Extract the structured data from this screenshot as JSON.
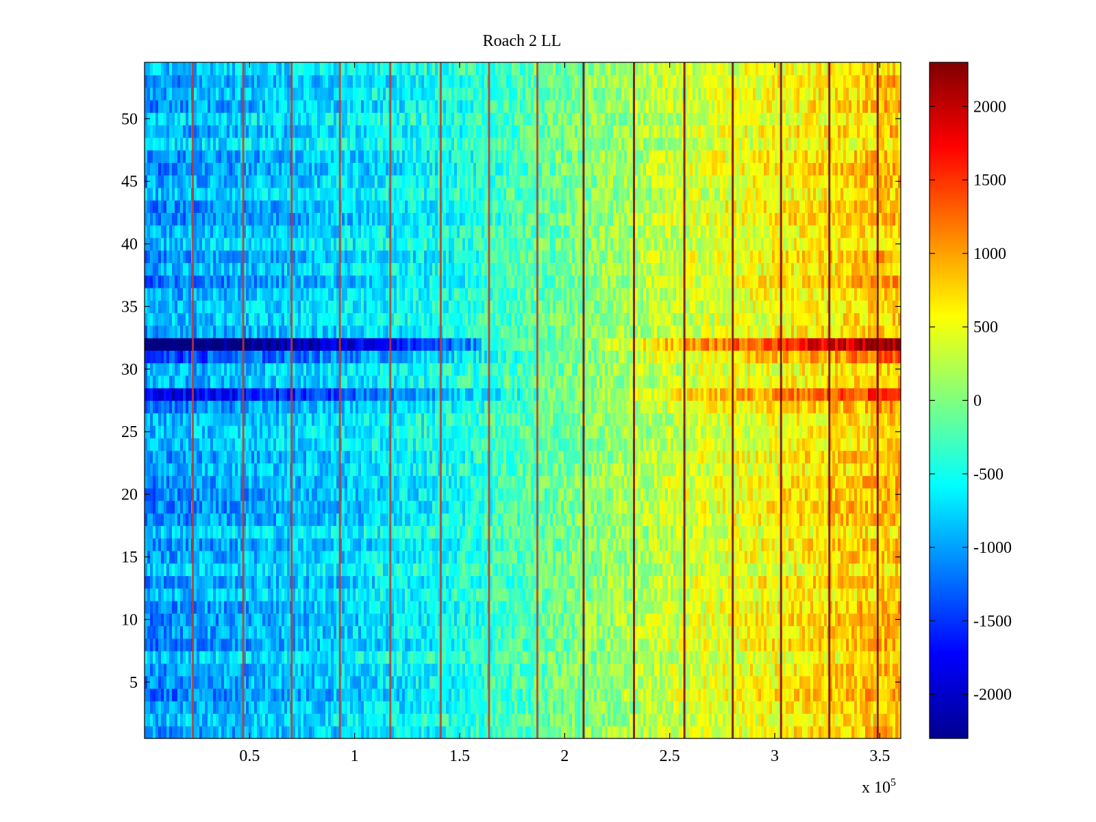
{
  "chart_data": {
    "type": "heatmap",
    "title": "Roach 2 LL",
    "xlabel": "",
    "ylabel": "",
    "x_multiplier_label": "x 10",
    "x_multiplier_exponent": "5",
    "xlim": [
      0,
      360000
    ],
    "ylim": [
      0.5,
      54.5
    ],
    "x_ticks": [
      50000,
      100000,
      150000,
      200000,
      250000,
      300000,
      350000
    ],
    "x_tick_labels": [
      "0.5",
      "1",
      "1.5",
      "2",
      "2.5",
      "3",
      "3.5"
    ],
    "y_ticks": [
      5,
      10,
      15,
      20,
      25,
      30,
      35,
      40,
      45,
      50
    ],
    "y_tick_labels": [
      "5",
      "10",
      "15",
      "20",
      "25",
      "30",
      "35",
      "40",
      "45",
      "50"
    ],
    "rows": 54,
    "colormap": "jet",
    "clim": [
      -2300,
      2300
    ],
    "colorbar": {
      "ticks": [
        -2000,
        -1500,
        -1000,
        -500,
        0,
        500,
        1000,
        1500,
        2000
      ],
      "tick_labels": [
        "-2000",
        "-1500",
        "-1000",
        "-500",
        "0",
        "500",
        "1000",
        "1500",
        "2000"
      ]
    },
    "trend": {
      "x": [
        0,
        50000,
        100000,
        150000,
        200000,
        250000,
        300000,
        360000
      ],
      "value": [
        -1000,
        -850,
        -700,
        -450,
        -50,
        300,
        550,
        850
      ]
    },
    "bright_lines_x": [
      23000,
      47000,
      70000,
      93000,
      117000,
      141000,
      164000,
      187000,
      209000,
      233000,
      257000,
      280000,
      303000,
      326000,
      349000
    ],
    "row_offsets": [
      {
        "rows": [
          32
        ],
        "scale": 3.2,
        "note": "strong row"
      },
      {
        "rows": [
          28
        ],
        "scale": 1.6
      },
      {
        "rows": [
          21
        ],
        "scale": 1.4
      },
      {
        "rows": [
          16
        ],
        "scale": 1.3
      },
      {
        "rows": [
          31,
          33
        ],
        "scale": 1.3
      }
    ]
  }
}
